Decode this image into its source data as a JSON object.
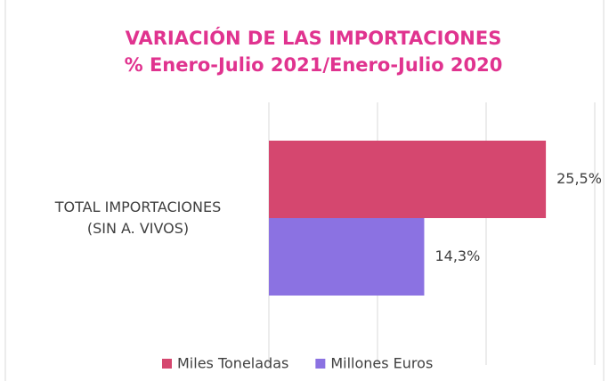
{
  "chart_data": {
    "type": "bar",
    "orientation": "horizontal",
    "title": "VARIACIÓN DE LAS IMPORTACIONES",
    "subtitle": "% Enero-Julio 2021/Enero-Julio 2020",
    "categories": [
      "TOTAL IMPORTACIONES\n(SIN A. VIVOS)"
    ],
    "series": [
      {
        "name": "Miles Toneladas",
        "color": "#d5476f",
        "values": [
          25.5
        ],
        "value_labels": [
          "25,5%"
        ]
      },
      {
        "name": "Millones Euros",
        "color": "#8b72e2",
        "values": [
          14.3
        ],
        "value_labels": [
          "14,3%"
        ]
      }
    ],
    "xlim": [
      0,
      30
    ],
    "xticks": [
      0,
      10,
      20,
      30
    ],
    "grid": true,
    "legend": "bottom"
  }
}
